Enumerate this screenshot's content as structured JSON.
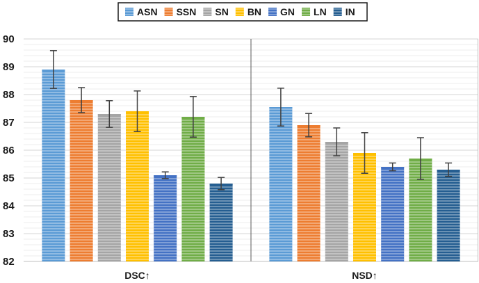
{
  "chart_data": {
    "type": "bar",
    "title": "",
    "xlabel": "",
    "ylabel": "",
    "ylim": [
      82,
      90
    ],
    "yticks": [
      82,
      83,
      84,
      85,
      86,
      87,
      88,
      89,
      90
    ],
    "categories": [
      "DSC↑",
      "NSD↑"
    ],
    "legend_position": "top-center",
    "grid": true,
    "series": [
      {
        "name": "ASN",
        "color": "#5b9bd5",
        "values": [
          88.9,
          87.55
        ],
        "errors": [
          0.68,
          0.68
        ]
      },
      {
        "name": "SSN",
        "color": "#ed7d31",
        "values": [
          87.8,
          86.9
        ],
        "errors": [
          0.45,
          0.42
        ]
      },
      {
        "name": "SN",
        "color": "#a5a5a5",
        "values": [
          87.3,
          86.3
        ],
        "errors": [
          0.48,
          0.5
        ]
      },
      {
        "name": "BN",
        "color": "#ffc000",
        "values": [
          87.4,
          85.9
        ],
        "errors": [
          0.73,
          0.73
        ]
      },
      {
        "name": "GN",
        "color": "#4472c4",
        "values": [
          85.1,
          85.4
        ],
        "errors": [
          0.12,
          0.14
        ]
      },
      {
        "name": "LN",
        "color": "#70ad47",
        "values": [
          87.2,
          85.7
        ],
        "errors": [
          0.73,
          0.75
        ]
      },
      {
        "name": "IN",
        "color": "#255e91",
        "values": [
          84.8,
          85.3
        ],
        "errors": [
          0.22,
          0.24
        ]
      }
    ]
  }
}
